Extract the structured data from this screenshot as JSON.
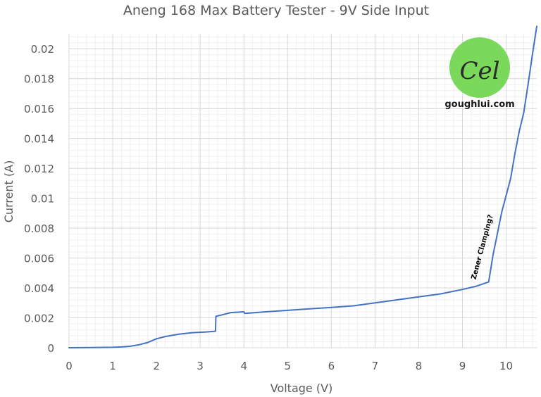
{
  "chart_data": {
    "type": "line",
    "title": "Aneng 168 Max Battery Tester - 9V Side Input",
    "xlabel": "Voltage (V)",
    "ylabel": "Current (A)",
    "xlim": [
      0,
      10.7
    ],
    "ylim": [
      0,
      0.021
    ],
    "x_ticks": [
      0,
      1,
      2,
      3,
      4,
      5,
      6,
      7,
      8,
      9,
      10
    ],
    "x_tick_labels": [
      "0",
      "1",
      "2",
      "3",
      "4",
      "5",
      "6",
      "7",
      "8",
      "9",
      "10"
    ],
    "y_ticks": [
      0,
      0.002,
      0.004,
      0.006,
      0.008,
      0.01,
      0.012,
      0.014,
      0.016,
      0.018,
      0.02
    ],
    "y_tick_labels": [
      "0",
      "0.002",
      "0.004",
      "0.006",
      "0.008",
      "0.01",
      "0.012",
      "0.014",
      "0.016",
      "0.018",
      "0.02"
    ],
    "grid": true,
    "legend": "none",
    "series": [
      {
        "color": "#4472c4",
        "x": [
          0,
          0.7,
          1.0,
          1.2,
          1.4,
          1.6,
          1.8,
          2.0,
          2.2,
          2.5,
          2.8,
          3.1,
          3.35,
          3.36,
          3.5,
          3.7,
          4.0,
          4.02,
          4.5,
          5.0,
          5.5,
          6.0,
          6.5,
          7.0,
          7.5,
          8.0,
          8.5,
          9.0,
          9.3,
          9.6,
          9.7,
          9.9,
          10.1,
          10.2,
          10.3,
          10.4,
          10.5,
          10.6,
          10.7
        ],
        "y": [
          0,
          2e-05,
          3e-05,
          5e-05,
          0.0001,
          0.0002,
          0.00035,
          0.0006,
          0.00075,
          0.0009,
          0.001,
          0.00105,
          0.0011,
          0.0021,
          0.0022,
          0.00235,
          0.0024,
          0.0023,
          0.0024,
          0.0025,
          0.0026,
          0.0027,
          0.0028,
          0.003,
          0.0032,
          0.0034,
          0.0036,
          0.0039,
          0.0041,
          0.0044,
          0.0062,
          0.0091,
          0.0113,
          0.013,
          0.0145,
          0.0157,
          0.0176,
          0.0196,
          0.0215
        ]
      }
    ],
    "annotations": [
      {
        "text": "Zener Clamping?",
        "x": 9.5,
        "y": 0.0067,
        "rotation": -75
      }
    ]
  },
  "watermark": {
    "monogram": "Cel",
    "site": "goughlui.com",
    "circle_color": "#7ad85b"
  }
}
